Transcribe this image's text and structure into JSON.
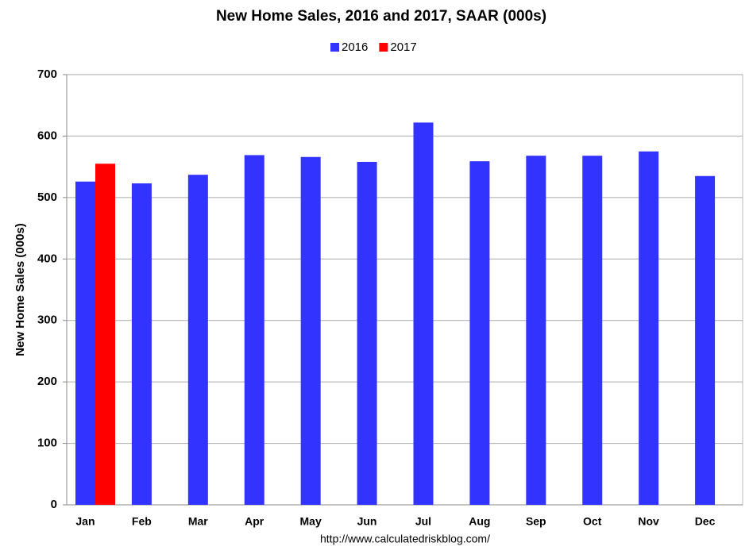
{
  "chart_data": {
    "type": "bar",
    "title": "New Home Sales,  2016 and 2017, SAAR (000s)",
    "y_label": "New Home Sales (000s)",
    "source": "http://www.calculatedriskblog.com/",
    "categories": [
      "Jan",
      "Feb",
      "Mar",
      "Apr",
      "May",
      "Jun",
      "Jul",
      "Aug",
      "Sep",
      "Oct",
      "Nov",
      "Dec"
    ],
    "series": [
      {
        "name": "2016",
        "color": "#3333ff",
        "values": [
          526,
          523,
          537,
          569,
          566,
          558,
          622,
          559,
          568,
          568,
          575,
          535
        ]
      },
      {
        "name": "2017",
        "color": "#ff0000",
        "values": [
          555,
          null,
          null,
          null,
          null,
          null,
          null,
          null,
          null,
          null,
          null,
          null
        ]
      }
    ],
    "ylim": [
      0,
      700
    ],
    "yticks": [
      0,
      100,
      200,
      300,
      400,
      500,
      600,
      700
    ],
    "grid": true
  }
}
